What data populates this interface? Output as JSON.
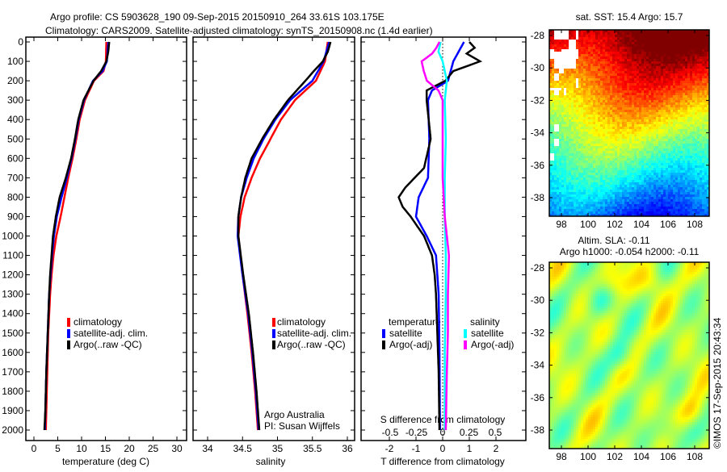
{
  "title_line1": "Argo profile: CS 5903628_190 09-Sep-2015 20150910_264 33.61S 103.175E",
  "title_line2": "Climatology: CARS2009. Satellite-adjusted climatology: synTS_20150908.nc (1.4d earlier)",
  "colors": {
    "climatology": "#ff0000",
    "satellite": "#0000ff",
    "argo": "#000000",
    "sal_satellite": "#00ffff",
    "sal_argo": "#ff00ff"
  },
  "chart_data": [
    {
      "type": "line",
      "name": "temperature-profile",
      "xlabel": "temperature (deg C)",
      "ylabel": "",
      "xlim": [
        -2,
        31.5
      ],
      "ylim": [
        2060,
        0
      ],
      "xticks": [
        0,
        5,
        10,
        15,
        20,
        25,
        30
      ],
      "yticks": [
        0,
        100,
        200,
        300,
        400,
        500,
        600,
        700,
        800,
        900,
        1000,
        1100,
        1200,
        1300,
        1400,
        1500,
        1600,
        1700,
        1800,
        1900,
        2000
      ],
      "legend": [
        "climatology",
        "satellite-adj. clim.",
        "Argo(..raw -QC)"
      ],
      "series": [
        {
          "name": "climatology",
          "depth": [
            0,
            100,
            150,
            200,
            300,
            400,
            500,
            600,
            700,
            800,
            900,
            1000,
            1100,
            1200,
            1300,
            1500,
            1700,
            1900,
            2000
          ],
          "values": [
            15.2,
            15.1,
            14.6,
            12.6,
            10.7,
            9.6,
            8.9,
            8.1,
            7.2,
            6.4,
            5.6,
            4.7,
            4.1,
            3.7,
            3.4,
            3.0,
            2.8,
            2.6,
            2.5
          ]
        },
        {
          "name": "satellite-adj. clim.",
          "depth": [
            0,
            100,
            150,
            200,
            300,
            400,
            500,
            600,
            700,
            800,
            900,
            1000,
            1100,
            1200,
            1300,
            1500,
            1700,
            1900,
            2000
          ],
          "values": [
            15.6,
            15.3,
            14.4,
            12.4,
            10.5,
            9.4,
            8.7,
            7.9,
            6.9,
            5.8,
            4.8,
            4.2,
            3.8,
            3.5,
            3.2,
            2.9,
            2.6,
            2.4,
            2.3
          ]
        },
        {
          "name": "Argo(..raw -QC)",
          "depth": [
            0,
            50,
            100,
            150,
            200,
            300,
            400,
            500,
            600,
            700,
            800,
            850,
            900,
            1000,
            1100,
            1200,
            1300,
            1500,
            1700,
            1900,
            2000
          ],
          "values": [
            15.8,
            15.6,
            15.2,
            14.1,
            12.5,
            10.4,
            9.3,
            8.6,
            7.8,
            6.7,
            5.4,
            5.0,
            4.6,
            4.0,
            3.7,
            3.4,
            3.2,
            2.9,
            2.6,
            2.4,
            2.2
          ]
        }
      ]
    },
    {
      "type": "line",
      "name": "salinity-profile",
      "xlabel": "salinity",
      "xlim": [
        33.85,
        36.05
      ],
      "ylim": [
        2060,
        0
      ],
      "xticks": [
        "34",
        "34.5",
        "35",
        "35.5",
        "36"
      ],
      "legend": [
        "climatology",
        "satellite-adj. clim.",
        "Argo(..raw -QC)"
      ],
      "annotation": [
        "Argo Australia",
        "PI: Susan Wijffels"
      ],
      "series": [
        {
          "name": "climatology",
          "depth": [
            0,
            100,
            200,
            300,
            400,
            500,
            600,
            700,
            800,
            900,
            1000,
            1200,
            1400,
            1600,
            1800,
            2000
          ],
          "values": [
            35.72,
            35.68,
            35.55,
            35.25,
            35.05,
            34.9,
            34.75,
            34.63,
            34.53,
            34.47,
            34.44,
            34.5,
            34.57,
            34.63,
            34.68,
            34.72
          ]
        },
        {
          "name": "satellite-adj. clim.",
          "depth": [
            0,
            100,
            200,
            300,
            400,
            500,
            600,
            700,
            800,
            900,
            1000,
            1200,
            1400,
            1600,
            1800,
            2000
          ],
          "values": [
            35.74,
            35.66,
            35.5,
            35.18,
            34.97,
            34.8,
            34.66,
            34.56,
            34.48,
            34.44,
            34.43,
            34.5,
            34.58,
            34.64,
            34.69,
            34.73
          ]
        },
        {
          "name": "Argo(..raw -QC)",
          "depth": [
            0,
            50,
            100,
            150,
            200,
            300,
            400,
            500,
            600,
            700,
            800,
            900,
            1000,
            1200,
            1400,
            1600,
            1800,
            2000
          ],
          "values": [
            35.76,
            35.72,
            35.65,
            35.52,
            35.4,
            35.15,
            34.95,
            34.78,
            34.63,
            34.54,
            34.48,
            34.44,
            34.44,
            34.51,
            34.59,
            34.65,
            34.7,
            34.74
          ]
        }
      ]
    },
    {
      "type": "line",
      "name": "difference-profile",
      "xlabel": "T difference from climatology",
      "xlabel2": "S difference from climatology",
      "xlim": [
        -3.2,
        3.1
      ],
      "ylim": [
        2060,
        0
      ],
      "xticks": [
        "-2",
        "-1",
        "0",
        "1",
        "2"
      ],
      "xticks2": [
        "-0.5",
        "-0.25",
        "0",
        "0.25",
        "0.5"
      ],
      "legend_titles": [
        "temperature",
        "salinity"
      ],
      "legend": [
        "satellite",
        "Argo(-adj)",
        "satellite",
        "Argo(-adj)"
      ],
      "series": [
        {
          "name": "T satellite",
          "units": "T",
          "depth": [
            0,
            50,
            100,
            150,
            200,
            250,
            300,
            500,
            700,
            800,
            900,
            1000,
            1100,
            1300,
            1600,
            2000
          ],
          "values": [
            0.8,
            0.6,
            0.4,
            0.3,
            0.2,
            -0.4,
            -0.55,
            -0.5,
            -0.55,
            -0.9,
            -1.0,
            -0.6,
            -0.25,
            -0.15,
            -0.12,
            -0.1
          ]
        },
        {
          "name": "T Argo(-adj)",
          "units": "T",
          "depth": [
            0,
            30,
            60,
            100,
            150,
            200,
            250,
            300,
            500,
            650,
            750,
            800,
            850,
            900,
            1000,
            1100,
            1200,
            1300,
            1500,
            1700,
            2000
          ],
          "values": [
            1.0,
            1.2,
            0.9,
            1.4,
            0.4,
            0.1,
            -0.6,
            -0.6,
            -0.45,
            -0.7,
            -1.4,
            -1.65,
            -1.5,
            -1.2,
            -0.7,
            -0.4,
            -0.3,
            -0.25,
            -0.2,
            -0.15,
            -0.12
          ]
        },
        {
          "name": "S satellite",
          "units": "S",
          "depth": [
            0,
            50,
            100,
            200,
            300,
            500,
            700,
            900,
            1100,
            1300,
            1600,
            2000
          ],
          "values": [
            -0.02,
            -0.04,
            0.0,
            0.04,
            0.02,
            0.03,
            0.02,
            0.02,
            0.03,
            0.03,
            0.02,
            0.02
          ]
        },
        {
          "name": "S Argo(-adj)",
          "units": "S",
          "depth": [
            0,
            30,
            60,
            100,
            150,
            200,
            250,
            300,
            500,
            700,
            900,
            1100,
            1300,
            1500,
            1700,
            2000
          ],
          "values": [
            -0.03,
            -0.06,
            -0.1,
            -0.2,
            -0.18,
            -0.15,
            -0.04,
            0.0,
            0.0,
            0.0,
            0.02,
            0.06,
            0.05,
            0.05,
            0.04,
            0.03
          ]
        }
      ]
    },
    {
      "type": "heatmap",
      "name": "sst-map",
      "title": "sat. SST: 15.4 Argo: 15.7",
      "xticks": [
        "98",
        "100",
        "102",
        "104",
        "106",
        "108"
      ],
      "yticks": [
        "-28",
        "-30",
        "-32",
        "-34",
        "-36",
        "-38"
      ],
      "xlim": [
        97.1,
        109.2
      ],
      "ylim": [
        -39.6,
        -27.6
      ]
    },
    {
      "type": "heatmap",
      "name": "sla-map",
      "title": "Altim. SLA: -0.11",
      "subtitle": "Argo h1000: -0.054 h2000: -0.11",
      "xticks": [
        "98",
        "100",
        "102",
        "104",
        "106",
        "108"
      ],
      "yticks": [
        "-28",
        "-30",
        "-32",
        "-34",
        "-36",
        "-38"
      ],
      "xlim": [
        97.1,
        109.2
      ],
      "ylim": [
        -39.6,
        -27.6
      ]
    }
  ],
  "credit": "©IMOS 17-Sep-2015 20:43:34"
}
